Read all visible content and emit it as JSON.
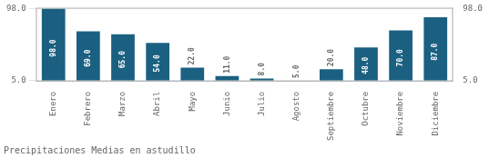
{
  "chart_data": {
    "type": "bar",
    "title": "Precipitaciones Medias en astudillo",
    "categories": [
      "Enero",
      "Febrero",
      "Marzo",
      "Abril",
      "Mayo",
      "Junio",
      "Julio",
      "Agosto",
      "Septiembre",
      "Octubre",
      "Noviembre",
      "Diciembre"
    ],
    "values": [
      98.0,
      69.0,
      65.0,
      54.0,
      22.0,
      11.0,
      8.0,
      5.0,
      20.0,
      48.0,
      70.0,
      87.0
    ],
    "value_labels": [
      "98.0",
      "69.0",
      "65.0",
      "54.0",
      "22.0",
      "11.0",
      "8.0",
      "5.0",
      "20.0",
      "48.0",
      "70.0",
      "87.0"
    ],
    "data_labels": true,
    "color": "#1b6080",
    "ylim": [
      4.0,
      99.5
    ],
    "yticks": [
      {
        "value": 5.0,
        "label": "5.0"
      },
      {
        "value": 98.0,
        "label": "98.0"
      }
    ],
    "y2lim": [
      4.0,
      99.5
    ],
    "y2ticks": [
      {
        "value": 5.0,
        "label": "5.0"
      },
      {
        "value": 98.0,
        "label": "98.0"
      }
    ],
    "grid": true
  }
}
